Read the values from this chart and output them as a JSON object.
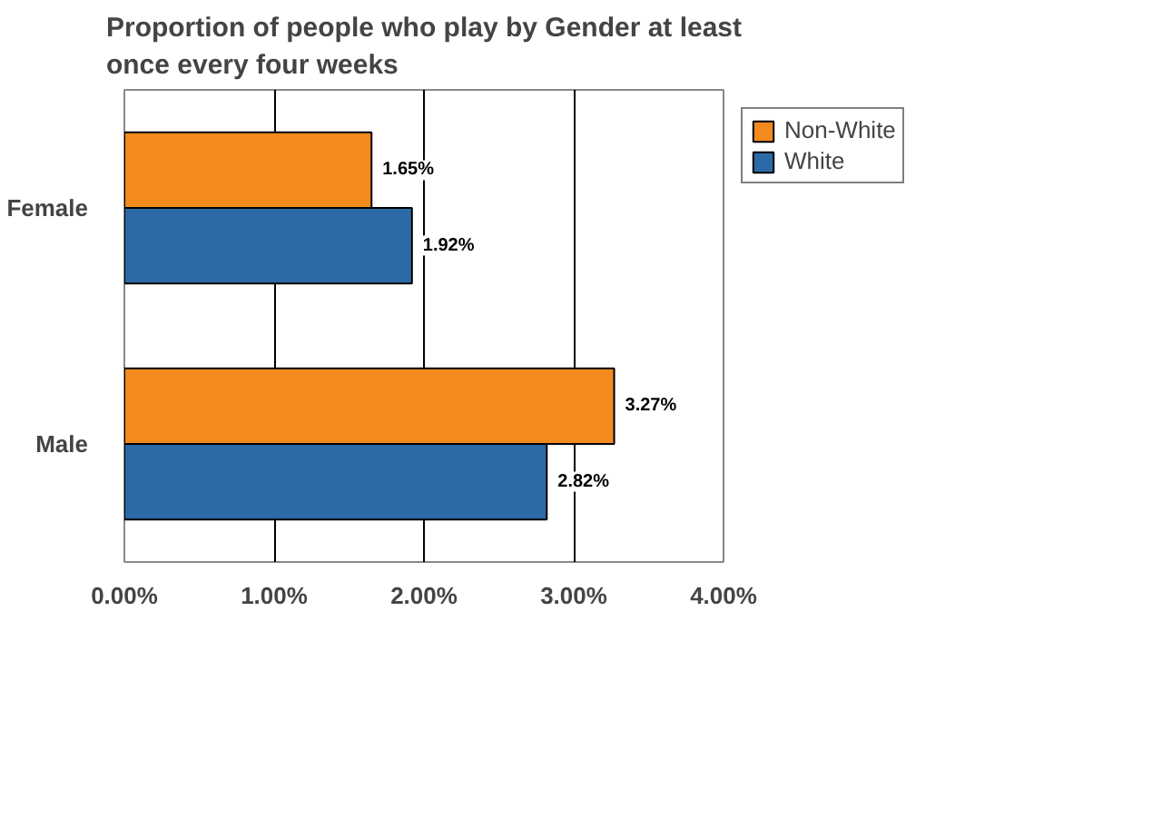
{
  "chart_data": {
    "type": "bar",
    "orientation": "horizontal",
    "title": "Proportion of people who play by Gender at least once every four weeks",
    "categories": [
      "Female",
      "Male"
    ],
    "series": [
      {
        "name": "Non-White",
        "color": "#f28a1e",
        "values": [
          1.65,
          3.27
        ],
        "value_labels": [
          "1.65%",
          "3.27%"
        ]
      },
      {
        "name": "White",
        "color": "#2b6aa6",
        "values": [
          1.92,
          2.82
        ],
        "value_labels": [
          "1.92%",
          "2.82%"
        ]
      }
    ],
    "xlim": [
      0,
      4
    ],
    "xticks": [
      {
        "value": 0,
        "label": "0.00%"
      },
      {
        "value": 1,
        "label": "1.00%"
      },
      {
        "value": 2,
        "label": "2.00%"
      },
      {
        "value": 3,
        "label": "3.00%"
      },
      {
        "value": 4,
        "label": "4.00%"
      }
    ],
    "grid": "x",
    "legend": "right"
  }
}
